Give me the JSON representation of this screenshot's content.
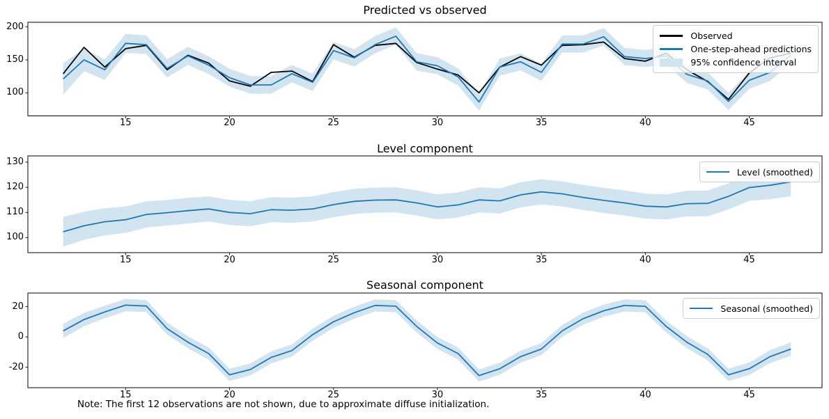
{
  "figure": {
    "note": "Note: The first 12 observations are not shown, due to approximate diffuse initialization.",
    "background": "#ffffff",
    "colors": {
      "observed_line": "#000000",
      "prediction_line": "#1f77b4",
      "ci_band": "#d2e4f0",
      "spine": "#000000"
    }
  },
  "chart_data": [
    {
      "type": "line",
      "title": "Predicted vs observed",
      "legend_position": "upper right",
      "x": [
        12,
        13,
        14,
        15,
        16,
        17,
        18,
        19,
        20,
        21,
        22,
        23,
        24,
        25,
        26,
        27,
        28,
        29,
        30,
        31,
        32,
        33,
        34,
        35,
        36,
        37,
        38,
        39,
        40,
        41,
        42,
        43,
        44,
        45,
        46,
        47
      ],
      "series": [
        {
          "name": "Observed",
          "color": "#000000",
          "values": [
            129,
            169,
            139,
            167,
            172,
            135,
            157,
            145,
            118,
            110,
            131,
            133,
            117,
            173,
            154,
            172,
            175,
            146,
            136,
            127,
            100,
            139,
            155,
            142,
            172,
            173,
            177,
            152,
            148,
            160,
            135,
            117,
            90,
            130,
            153,
            160
          ]
        },
        {
          "name": "One-step-ahead predictions",
          "color": "#1f77b4",
          "values": [
            121,
            150,
            135,
            175,
            173,
            137,
            156,
            142,
            123,
            112,
            112,
            129,
            116,
            164,
            153,
            173,
            186,
            147,
            141,
            124,
            86,
            139,
            147,
            131,
            174,
            174,
            185,
            155,
            152,
            156,
            128,
            118,
            87,
            119,
            131,
            157
          ]
        }
      ],
      "ci": {
        "name": "95% confidence interval",
        "around": "One-step-ahead predictions",
        "halfwidth": [
          24,
          17,
          15.5,
          14.5,
          14,
          13.8,
          13.6,
          13.5,
          13.4,
          13.4,
          13.3,
          13.3,
          13.2,
          13.2,
          13.2,
          13.1,
          13.1,
          13.1,
          13.1,
          13,
          13,
          13,
          13,
          13,
          13,
          13,
          13,
          13,
          13,
          13,
          13,
          13,
          13,
          13,
          13,
          13
        ]
      },
      "xticks": [
        15,
        20,
        25,
        30,
        35,
        40,
        45
      ],
      "yticks": [
        100,
        150,
        200
      ],
      "xlim": [
        10.3,
        48.5
      ],
      "ylim": [
        65,
        207
      ]
    },
    {
      "type": "line",
      "title": "Level component",
      "legend_position": "upper right",
      "x": [
        12,
        13,
        14,
        15,
        16,
        17,
        18,
        19,
        20,
        21,
        22,
        23,
        24,
        25,
        26,
        27,
        28,
        29,
        30,
        31,
        32,
        33,
        34,
        35,
        36,
        37,
        38,
        39,
        40,
        41,
        42,
        43,
        44,
        45,
        46,
        47
      ],
      "series": [
        {
          "name": "Level (smoothed)",
          "color": "#1f77b4",
          "values": [
            102.3,
            104.7,
            106.3,
            107.1,
            109.2,
            109.9,
            110.7,
            111.4,
            110.0,
            109.5,
            111.1,
            110.9,
            111.4,
            113.1,
            114.4,
            114.9,
            115.0,
            113.8,
            112.2,
            113.0,
            115.0,
            114.6,
            117.0,
            118.2,
            117.4,
            116.0,
            114.8,
            113.8,
            112.5,
            112.2,
            113.5,
            113.6,
            116.4,
            119.9,
            120.8,
            122.2
          ]
        }
      ],
      "ci": {
        "name": "95% confidence interval",
        "around": "Level (smoothed)",
        "halfwidth": [
          5.9,
          5.6,
          5.4,
          5.3,
          5.2,
          5.1,
          5.1,
          5.0,
          5.0,
          5.0,
          5.0,
          5.0,
          5.0,
          5.0,
          5.0,
          5.0,
          5.0,
          5.0,
          5.0,
          5.0,
          5.0,
          5.0,
          5.0,
          5.0,
          5.0,
          5.0,
          5.0,
          5.0,
          5.0,
          5.0,
          5.1,
          5.1,
          5.2,
          5.3,
          5.5,
          5.8
        ]
      },
      "xticks": [
        15,
        20,
        25,
        30,
        35,
        40,
        45
      ],
      "yticks": [
        100,
        110,
        120,
        130
      ],
      "xlim": [
        10.3,
        48.5
      ],
      "ylim": [
        94,
        132.5
      ]
    },
    {
      "type": "line",
      "title": "Seasonal component",
      "legend_position": "upper right",
      "x": [
        12,
        13,
        14,
        15,
        16,
        17,
        18,
        19,
        20,
        21,
        22,
        23,
        24,
        25,
        26,
        27,
        28,
        29,
        30,
        31,
        32,
        33,
        34,
        35,
        36,
        37,
        38,
        39,
        40,
        41,
        42,
        43,
        44,
        45,
        46,
        47
      ],
      "series": [
        {
          "name": "Seasonal (smoothed)",
          "color": "#1f77b4",
          "values": [
            4,
            11.5,
            16.5,
            21,
            20.4,
            5.5,
            -3.5,
            -11,
            -25,
            -21.5,
            -13.5,
            -9,
            1.5,
            10,
            16,
            20.8,
            20.3,
            7,
            -4,
            -11,
            -25.5,
            -21,
            -13,
            -8,
            4,
            12,
            17.3,
            20.8,
            20.2,
            7,
            -3.5,
            -11.5,
            -25,
            -21,
            -13,
            -8
          ]
        }
      ],
      "ci": {
        "name": "95% confidence interval",
        "around": "Seasonal (smoothed)",
        "halfwidth": [
          4.8,
          4.4,
          4.2,
          4.1,
          4.0,
          4.0,
          4.0,
          4.0,
          4.0,
          4.0,
          4.0,
          4.0,
          4.0,
          4.0,
          4.0,
          4.0,
          4.0,
          4.0,
          4.0,
          4.0,
          4.0,
          4.0,
          4.0,
          4.0,
          4.0,
          4.0,
          4.0,
          4.0,
          4.0,
          4.0,
          4.0,
          4.0,
          4.1,
          4.2,
          4.3,
          4.5
        ]
      },
      "xticks": [
        15,
        20,
        25,
        30,
        35,
        40,
        45
      ],
      "yticks": [
        -20,
        0,
        20
      ],
      "xlim": [
        10.3,
        48.5
      ],
      "ylim": [
        -33.5,
        29
      ]
    }
  ]
}
